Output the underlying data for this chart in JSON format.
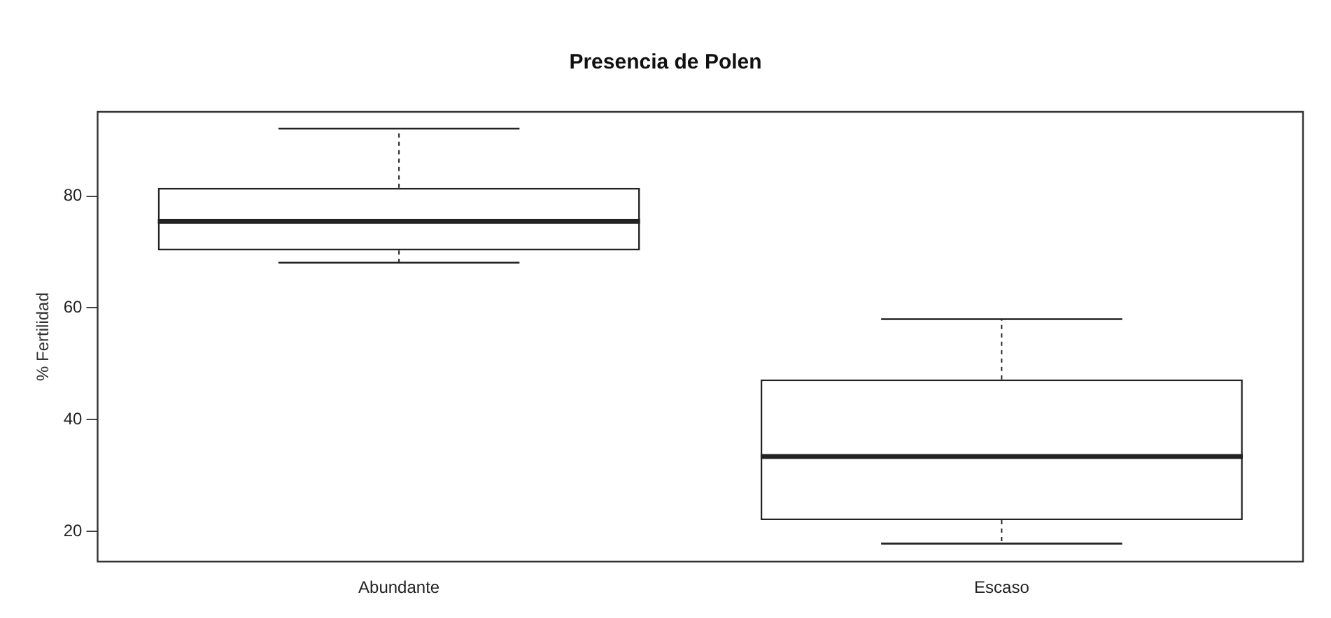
{
  "chart_data": {
    "type": "box",
    "title": "Presencia de Polen",
    "ylabel": "% Fertilidad",
    "categories": [
      "Abundante",
      "Escaso"
    ],
    "boxes": [
      {
        "low": 68.1,
        "q1": 70.3,
        "median": 75.5,
        "q3": 81.5,
        "high": 92.1
      },
      {
        "low": 17.8,
        "q1": 22.0,
        "median": 33.4,
        "q3": 47.2,
        "high": 58.0
      }
    ],
    "ylim": [
      14.6,
      95.1
    ],
    "yticks": [
      20,
      40,
      60,
      80
    ],
    "grid": false,
    "legend": false
  }
}
